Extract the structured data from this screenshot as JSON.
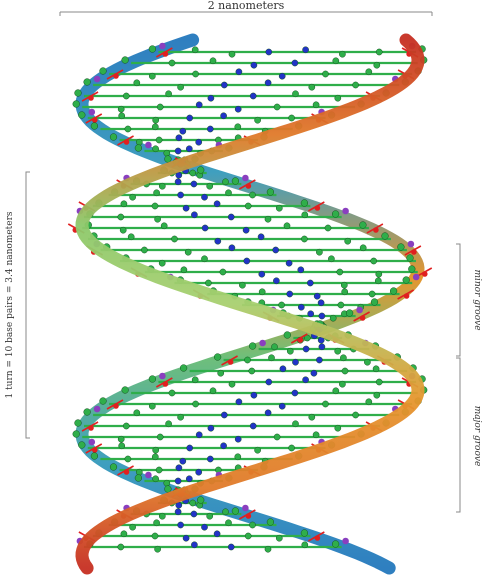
{
  "labels": {
    "width": "2 nanometers",
    "turn": "1 turn = 10 base pairs = 3.4 nanometers",
    "minor_groove": "minor groove",
    "major_groove": "major groove"
  },
  "colors": {
    "backbone_front": [
      "#c62f22",
      "#e07a2a",
      "#f0a040",
      "#a8d070",
      "#6fbf7a",
      "#3f9fbf",
      "#2f7fc0"
    ],
    "carbon": "#2fae4a",
    "nitrogen": "#2233c8",
    "oxygen": "#e02020",
    "phosphorus": "#8a3fbf"
  },
  "icons": {
    "molecule": "dna-double-helix"
  }
}
